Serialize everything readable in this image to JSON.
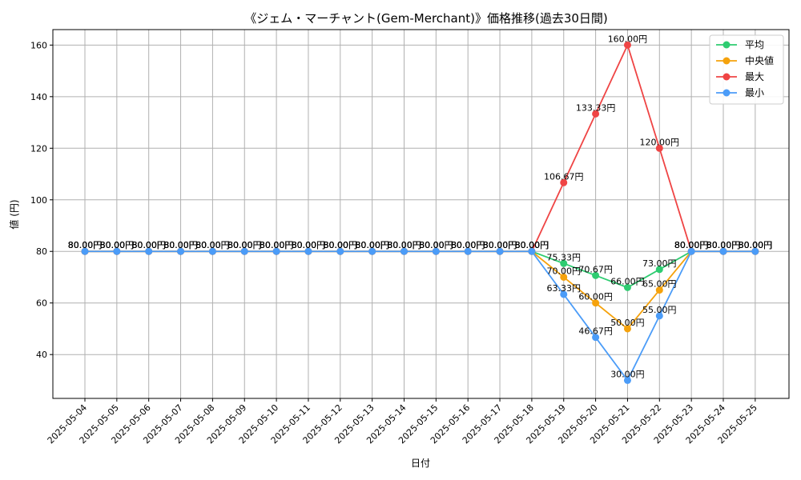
{
  "chart_data": {
    "type": "line",
    "title": "《ジェム・マーチャント(Gem-Merchant)》価格推移(過去30日間)",
    "xlabel": "日付",
    "ylabel": "値 (円)",
    "ylim": [
      23,
      166
    ],
    "yticks": [
      40,
      60,
      80,
      100,
      120,
      140,
      160
    ],
    "grid": true,
    "legend_position": "top-right",
    "label_suffix": "円",
    "x": [
      "2025-05-04",
      "2025-05-05",
      "2025-05-06",
      "2025-05-07",
      "2025-05-08",
      "2025-05-09",
      "2025-05-10",
      "2025-05-11",
      "2025-05-12",
      "2025-05-13",
      "2025-05-14",
      "2025-05-15",
      "2025-05-16",
      "2025-05-17",
      "2025-05-18",
      "2025-05-19",
      "2025-05-20",
      "2025-05-21",
      "2025-05-22",
      "2025-05-23",
      "2025-05-24",
      "2025-05-25"
    ],
    "series": [
      {
        "name": "平均",
        "color": "#2ecc71",
        "values": [
          80,
          80,
          80,
          80,
          80,
          80,
          80,
          80,
          80,
          80,
          80,
          80,
          80,
          80,
          80,
          75.33,
          70.67,
          66.0,
          73.0,
          80,
          80,
          80
        ],
        "labels": [
          "80.00円",
          "80.00円",
          "80.00円",
          "80.00円",
          "80.00円",
          "80.00円",
          "80.00円",
          "80.00円",
          "80.00円",
          "80.00円",
          "80.00円",
          "80.00円",
          "80.00円",
          "80.00円",
          "80.00円",
          "75.33円",
          "70.67円",
          "66.00円",
          "73.00円",
          "80.00円",
          "80.00円",
          "80.00円"
        ]
      },
      {
        "name": "中央値",
        "color": "#f5a20c",
        "values": [
          80,
          80,
          80,
          80,
          80,
          80,
          80,
          80,
          80,
          80,
          80,
          80,
          80,
          80,
          80,
          70,
          60,
          50,
          65,
          80,
          80,
          80
        ],
        "labels": [
          "80.00円",
          "80.00円",
          "80.00円",
          "80.00円",
          "80.00円",
          "80.00円",
          "80.00円",
          "80.00円",
          "80.00円",
          "80.00円",
          "80.00円",
          "80.00円",
          "80.00円",
          "80.00円",
          "80.00円",
          "70.00円",
          "60.00円",
          "50.00円",
          "65.00円",
          "80.00円",
          "80.00円",
          "80.00円"
        ]
      },
      {
        "name": "最大",
        "color": "#ef4444",
        "values": [
          80,
          80,
          80,
          80,
          80,
          80,
          80,
          80,
          80,
          80,
          80,
          80,
          80,
          80,
          80,
          106.67,
          133.33,
          160,
          120,
          80,
          80,
          80
        ],
        "labels": [
          "80.00円",
          "80.00円",
          "80.00円",
          "80.00円",
          "80.00円",
          "80.00円",
          "80.00円",
          "80.00円",
          "80.00円",
          "80.00円",
          "80.00円",
          "80.00円",
          "80.00円",
          "80.00円",
          "80.00円",
          "106.67円",
          "133.33円",
          "160.00円",
          "120.00円",
          "80.00円",
          "80.00円",
          "80.00円"
        ]
      },
      {
        "name": "最小",
        "color": "#4b9cf8",
        "values": [
          80,
          80,
          80,
          80,
          80,
          80,
          80,
          80,
          80,
          80,
          80,
          80,
          80,
          80,
          80,
          63.33,
          46.67,
          30,
          55,
          80,
          80,
          80
        ],
        "labels": [
          "80.00円",
          "80.00円",
          "80.00円",
          "80.00円",
          "80.00円",
          "80.00円",
          "80.00円",
          "80.00円",
          "80.00円",
          "80.00円",
          "80.00円",
          "80.00円",
          "80.00円",
          "80.00円",
          "80.00円",
          "63.33円",
          "46.67円",
          "30.00円",
          "55.00円",
          "80.00円",
          "80.00円",
          "80.00円"
        ]
      }
    ]
  }
}
